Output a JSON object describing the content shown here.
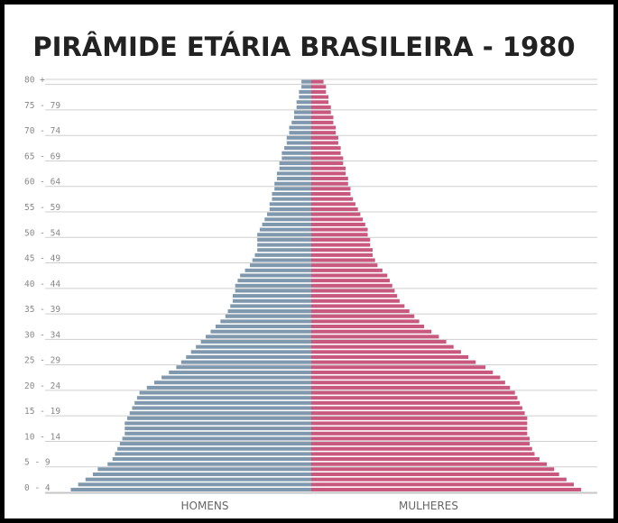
{
  "chart_data": {
    "type": "bar",
    "orientation": "horizontal-population-pyramid",
    "title": "PIRÂMIDE ETÁRIA BRASILEIRA - 1980",
    "age_groups": [
      "0 - 4",
      "5 - 9",
      "10 - 14",
      "15 - 19",
      "20 - 24",
      "25 - 29",
      "30 - 34",
      "35 - 39",
      "40 - 44",
      "45 - 49",
      "50 - 54",
      "55 - 59",
      "60 - 64",
      "65 - 69",
      "70 - 74",
      "75 - 79",
      "80 +"
    ],
    "xlabel_left": "HOMENS",
    "xlabel_right": "MULHERES",
    "single_age_years": 81,
    "single_age_max": 100,
    "series": [
      {
        "name": "HOMENS",
        "color": "#7f98ad",
        "values": [
          98,
          95,
          92,
          89,
          87,
          83,
          81,
          80,
          79,
          78,
          77,
          76,
          76,
          76,
          75,
          74,
          73,
          72,
          71,
          70,
          67,
          64,
          61,
          58,
          55,
          53,
          51,
          49,
          47,
          45,
          43,
          41,
          39,
          37,
          35,
          34,
          33,
          32,
          32,
          31,
          31,
          30,
          29,
          27,
          25,
          24,
          23,
          22,
          22,
          22,
          22,
          21,
          20,
          19,
          18,
          17,
          17,
          16,
          16,
          15,
          15,
          14,
          14,
          13,
          13,
          12,
          12,
          11,
          10,
          10,
          9,
          9,
          8,
          7,
          7,
          6,
          6,
          5,
          5,
          4,
          4
        ]
      },
      {
        "name": "MULHERES",
        "color": "#c9587f",
        "values": [
          110,
          107,
          104,
          101,
          99,
          96,
          93,
          91,
          90,
          89,
          89,
          88,
          88,
          88,
          88,
          87,
          86,
          85,
          84,
          83,
          81,
          79,
          77,
          74,
          71,
          67,
          64,
          61,
          58,
          55,
          52,
          49,
          46,
          44,
          42,
          40,
          38,
          36,
          35,
          34,
          33,
          32,
          31,
          29,
          27,
          26,
          25,
          25,
          24,
          24,
          23,
          23,
          22,
          21,
          20,
          19,
          18,
          17,
          16,
          16,
          15,
          15,
          14,
          14,
          13,
          13,
          12,
          12,
          11,
          11,
          10,
          10,
          9,
          9,
          8,
          8,
          7,
          7,
          6,
          6,
          5
        ]
      }
    ]
  }
}
